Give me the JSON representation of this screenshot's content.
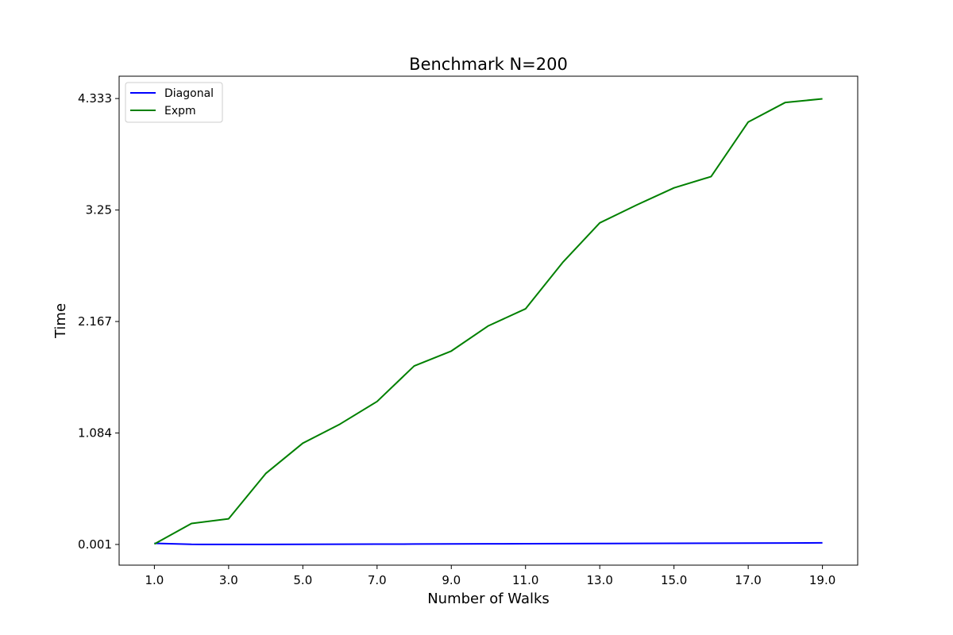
{
  "chart_data": {
    "type": "line",
    "title": "Benchmark N=200",
    "xlabel": "Number of Walks",
    "ylabel": "Time",
    "x": [
      1,
      2,
      3,
      4,
      5,
      6,
      7,
      8,
      9,
      10,
      11,
      12,
      13,
      14,
      15,
      16,
      17,
      18,
      19
    ],
    "xlim": [
      0.05,
      19.95
    ],
    "ylim": [
      -0.2,
      4.55
    ],
    "xticks": [
      1,
      3,
      5,
      7,
      9,
      11,
      13,
      15,
      17,
      19
    ],
    "xtick_labels": [
      "1.0",
      "3.0",
      "5.0",
      "7.0",
      "9.0",
      "11.0",
      "13.0",
      "15.0",
      "17.0",
      "19.0"
    ],
    "yticks": [
      0.001,
      1.084,
      2.167,
      3.25,
      4.333
    ],
    "ytick_labels": [
      "0.001",
      "1.084",
      "2.167",
      "3.25",
      "4.333"
    ],
    "grid": false,
    "legend_position": "top-left",
    "series": [
      {
        "name": "Diagonal",
        "color": "#0000ff",
        "values": [
          0.012,
          0.002,
          0.001,
          0.001,
          0.002,
          0.003,
          0.004,
          0.005,
          0.006,
          0.007,
          0.008,
          0.009,
          0.01,
          0.011,
          0.012,
          0.013,
          0.014,
          0.015,
          0.017
        ]
      },
      {
        "name": "Expm",
        "color": "#008000",
        "values": [
          0.005,
          0.205,
          0.25,
          0.69,
          0.985,
          1.17,
          1.39,
          1.735,
          1.88,
          2.125,
          2.29,
          2.74,
          3.125,
          3.3,
          3.465,
          3.575,
          4.105,
          4.295,
          4.33
        ]
      }
    ]
  }
}
